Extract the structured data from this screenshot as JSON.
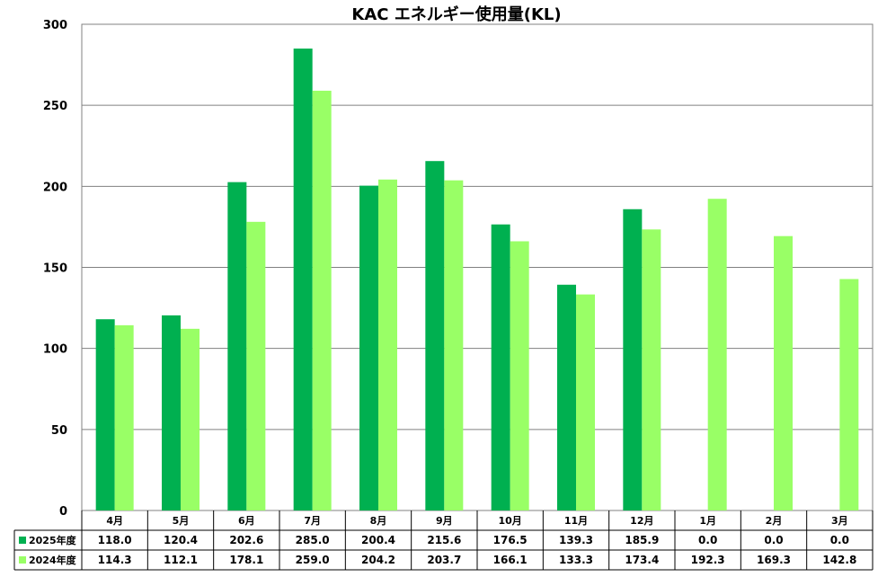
{
  "chart_data": {
    "type": "bar",
    "title": "KAC エネルギー使用量(KL)",
    "categories": [
      "4月",
      "5月",
      "6月",
      "7月",
      "8月",
      "9月",
      "10月",
      "11月",
      "12月",
      "1月",
      "2月",
      "3月"
    ],
    "ylim": [
      0,
      300
    ],
    "yticks": [
      "0",
      "50",
      "100",
      "150",
      "200",
      "250",
      "300"
    ],
    "grid": true,
    "legend": "data-table-left",
    "series": [
      {
        "name": "2025年度",
        "color": "#00b050",
        "values": [
          118.0,
          120.4,
          202.6,
          285.0,
          200.4,
          215.6,
          176.5,
          139.3,
          185.9,
          0.0,
          0.0,
          0.0
        ],
        "labels": [
          "118.0",
          "120.4",
          "202.6",
          "285.0",
          "200.4",
          "215.6",
          "176.5",
          "139.3",
          "185.9",
          "0.0",
          "0.0",
          "0.0"
        ]
      },
      {
        "name": "2024年度",
        "color": "#99ff66",
        "values": [
          114.3,
          112.1,
          178.1,
          259.0,
          204.2,
          203.7,
          166.1,
          133.3,
          173.4,
          192.3,
          169.3,
          142.8
        ],
        "labels": [
          "114.3",
          "112.1",
          "178.1",
          "259.0",
          "204.2",
          "203.7",
          "166.1",
          "133.3",
          "173.4",
          "192.3",
          "169.3",
          "142.8"
        ]
      }
    ]
  }
}
